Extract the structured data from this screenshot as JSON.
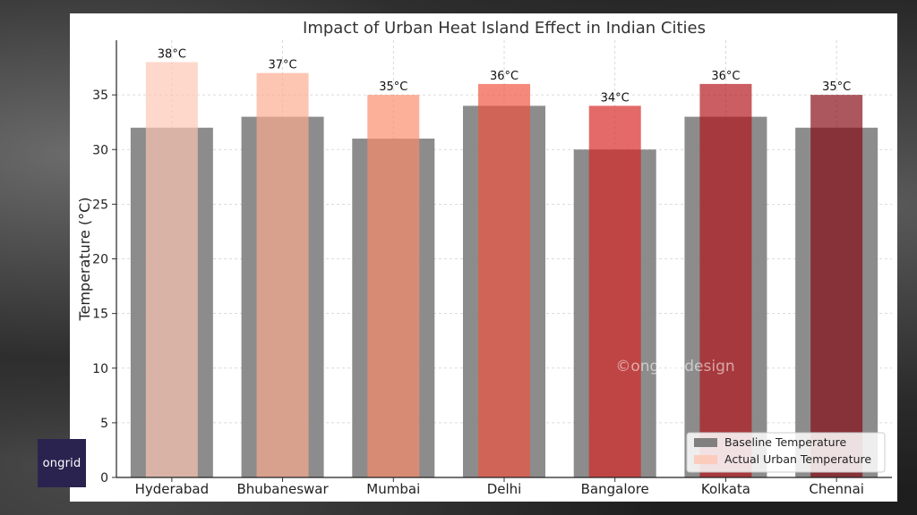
{
  "brand": {
    "logo_text": "ongrid",
    "watermark": "©ongrid.design"
  },
  "chart_data": {
    "type": "bar",
    "title": "Impact of Urban Heat Island Effect in Indian Cities",
    "xlabel": "",
    "ylabel": "Temperature (°C)",
    "ylim": [
      0,
      40
    ],
    "yticks": [
      0,
      5,
      10,
      15,
      20,
      25,
      30,
      35
    ],
    "grid": true,
    "legend_position": "bottom-right",
    "categories": [
      "Hyderabad",
      "Bhubaneswar",
      "Mumbai",
      "Delhi",
      "Bangalore",
      "Kolkata",
      "Chennai"
    ],
    "series": [
      {
        "name": "Baseline Temperature",
        "values": [
          32,
          33,
          31,
          34,
          30,
          33,
          32
        ],
        "color": "#808080"
      },
      {
        "name": "Actual Urban Temperature",
        "values": [
          38,
          37,
          35,
          36,
          34,
          36,
          35
        ],
        "colors": [
          "#fcc5b3",
          "#fcab8f",
          "#fb8a6a",
          "#f0523e",
          "#d52422",
          "#b21218",
          "#840711"
        ]
      }
    ],
    "data_labels": [
      "38°C",
      "37°C",
      "35°C",
      "36°C",
      "34°C",
      "36°C",
      "35°C"
    ]
  }
}
